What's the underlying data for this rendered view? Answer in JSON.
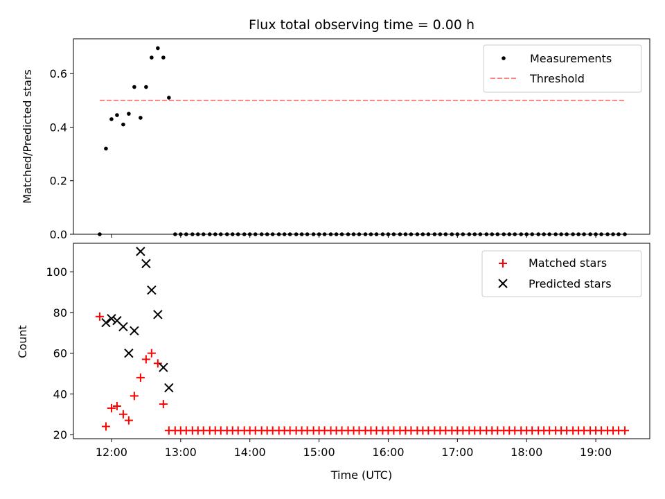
{
  "chart_data": [
    {
      "type": "scatter",
      "title": "Flux total observing time = 0.00 h",
      "xlabel": "",
      "ylabel": "Matched/Predicted stars",
      "ylim": [
        0,
        0.73
      ],
      "yticks": [
        0.0,
        0.2,
        0.4,
        0.6
      ],
      "ytick_labels": [
        "0.0",
        "0.2",
        "0.4",
        "0.6"
      ],
      "xlim_hours": [
        11.45,
        19.78
      ],
      "grid": false,
      "legend_placement": "upper right",
      "series": [
        {
          "name": "Measurements",
          "marker": "dot",
          "color": "#000000",
          "x_hours": [
            11.83,
            11.92,
            12.0,
            12.08,
            12.17,
            12.25,
            12.33,
            12.42,
            12.5,
            12.58,
            12.67,
            12.75,
            12.83,
            12.92,
            13.0,
            13.08,
            13.17,
            13.25,
            13.33,
            13.42,
            13.5,
            13.58,
            13.67,
            13.75,
            13.83,
            13.92,
            14.0,
            14.08,
            14.17,
            14.25,
            14.33,
            14.42,
            14.5,
            14.58,
            14.67,
            14.75,
            14.83,
            14.92,
            15.0,
            15.08,
            15.17,
            15.25,
            15.33,
            15.42,
            15.5,
            15.58,
            15.67,
            15.75,
            15.83,
            15.92,
            16.0,
            16.08,
            16.17,
            16.25,
            16.33,
            16.42,
            16.5,
            16.58,
            16.67,
            16.75,
            16.83,
            16.92,
            17.0,
            17.08,
            17.17,
            17.25,
            17.33,
            17.42,
            17.5,
            17.58,
            17.67,
            17.75,
            17.83,
            17.92,
            18.0,
            18.08,
            18.17,
            18.25,
            18.33,
            18.42,
            18.5,
            18.58,
            18.67,
            18.75,
            18.83,
            18.92,
            19.0,
            19.08,
            19.17,
            19.25,
            19.33,
            19.42
          ],
          "y": [
            0.0,
            0.32,
            0.43,
            0.445,
            0.41,
            0.45,
            0.55,
            0.435,
            0.55,
            0.66,
            0.695,
            0.66,
            0.51,
            0.0,
            0.0,
            0.0,
            0.0,
            0.0,
            0.0,
            0.0,
            0.0,
            0.0,
            0.0,
            0.0,
            0.0,
            0.0,
            0.0,
            0.0,
            0.0,
            0.0,
            0.0,
            0.0,
            0.0,
            0.0,
            0.0,
            0.0,
            0.0,
            0.0,
            0.0,
            0.0,
            0.0,
            0.0,
            0.0,
            0.0,
            0.0,
            0.0,
            0.0,
            0.0,
            0.0,
            0.0,
            0.0,
            0.0,
            0.0,
            0.0,
            0.0,
            0.0,
            0.0,
            0.0,
            0.0,
            0.0,
            0.0,
            0.0,
            0.0,
            0.0,
            0.0,
            0.0,
            0.0,
            0.0,
            0.0,
            0.0,
            0.0,
            0.0,
            0.0,
            0.0,
            0.0,
            0.0,
            0.0,
            0.0,
            0.0,
            0.0,
            0.0,
            0.0,
            0.0,
            0.0,
            0.0,
            0.0,
            0.0,
            0.0,
            0.0,
            0.0,
            0.0,
            0.0
          ]
        },
        {
          "name": "Threshold",
          "marker": "dashed-line",
          "color": "#ff7f7f",
          "x_hours": [
            11.83,
            19.42
          ],
          "y": [
            0.5,
            0.5
          ]
        }
      ]
    },
    {
      "type": "scatter",
      "title": "",
      "xlabel": "Time (UTC)",
      "ylabel": "Count",
      "ylim": [
        18,
        114
      ],
      "yticks": [
        20,
        40,
        60,
        80,
        100
      ],
      "ytick_labels": [
        "20",
        "40",
        "60",
        "80",
        "100"
      ],
      "xlim_hours": [
        11.45,
        19.78
      ],
      "xticks_hours": [
        12,
        13,
        14,
        15,
        16,
        17,
        18,
        19
      ],
      "xtick_labels": [
        "12:00",
        "13:00",
        "14:00",
        "15:00",
        "16:00",
        "17:00",
        "18:00",
        "19:00"
      ],
      "grid": false,
      "legend_placement": "upper right",
      "series": [
        {
          "name": "Matched stars",
          "marker": "plus",
          "color": "#ff0000",
          "x_hours": [
            11.83,
            11.92,
            12.0,
            12.08,
            12.17,
            12.25,
            12.33,
            12.42,
            12.5,
            12.58,
            12.67,
            12.75,
            12.83,
            12.92,
            13.0,
            13.08,
            13.17,
            13.25,
            13.33,
            13.42,
            13.5,
            13.58,
            13.67,
            13.75,
            13.83,
            13.92,
            14.0,
            14.08,
            14.17,
            14.25,
            14.33,
            14.42,
            14.5,
            14.58,
            14.67,
            14.75,
            14.83,
            14.92,
            15.0,
            15.08,
            15.17,
            15.25,
            15.33,
            15.42,
            15.5,
            15.58,
            15.67,
            15.75,
            15.83,
            15.92,
            16.0,
            16.08,
            16.17,
            16.25,
            16.33,
            16.42,
            16.5,
            16.58,
            16.67,
            16.75,
            16.83,
            16.92,
            17.0,
            17.08,
            17.17,
            17.25,
            17.33,
            17.42,
            17.5,
            17.58,
            17.67,
            17.75,
            17.83,
            17.92,
            18.0,
            18.08,
            18.17,
            18.25,
            18.33,
            18.42,
            18.5,
            18.58,
            18.67,
            18.75,
            18.83,
            18.92,
            19.0,
            19.08,
            19.17,
            19.25,
            19.33,
            19.42
          ],
          "y": [
            78,
            24,
            33,
            34,
            30,
            27,
            39,
            48,
            57,
            60,
            55,
            35,
            22,
            22,
            22,
            22,
            22,
            22,
            22,
            22,
            22,
            22,
            22,
            22,
            22,
            22,
            22,
            22,
            22,
            22,
            22,
            22,
            22,
            22,
            22,
            22,
            22,
            22,
            22,
            22,
            22,
            22,
            22,
            22,
            22,
            22,
            22,
            22,
            22,
            22,
            22,
            22,
            22,
            22,
            22,
            22,
            22,
            22,
            22,
            22,
            22,
            22,
            22,
            22,
            22,
            22,
            22,
            22,
            22,
            22,
            22,
            22,
            22,
            22,
            22,
            22,
            22,
            22,
            22,
            22,
            22,
            22,
            22,
            22,
            22,
            22,
            22,
            22,
            22,
            22,
            22,
            22
          ]
        },
        {
          "name": "Predicted stars",
          "marker": "x",
          "color": "#000000",
          "x_hours": [
            11.92,
            12.0,
            12.08,
            12.17,
            12.25,
            12.33,
            12.42,
            12.5,
            12.58,
            12.67,
            12.75,
            12.83
          ],
          "y": [
            75,
            77,
            76,
            73,
            60,
            71,
            110,
            104,
            91,
            79,
            53,
            43
          ]
        }
      ]
    }
  ]
}
